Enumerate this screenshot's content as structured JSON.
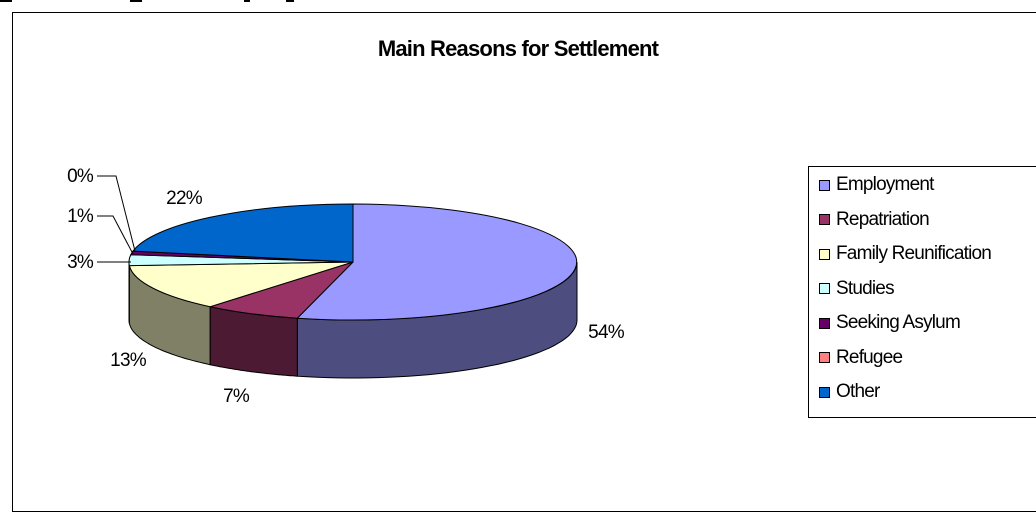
{
  "chart_data": {
    "type": "pie",
    "title": "Main Reasons for Settlement",
    "categories": [
      "Employment",
      "Repatriation",
      "Family Reunification",
      "Studies",
      "Seeking Asylum",
      "Refugee",
      "Other"
    ],
    "values": [
      54,
      7,
      13,
      3,
      1,
      0,
      22
    ],
    "value_labels": [
      "54%",
      "7%",
      "13%",
      "3%",
      "1%",
      "0%",
      "22%"
    ],
    "colors": [
      "#9999ff",
      "#993366",
      "#ffffcc",
      "#ccffff",
      "#660066",
      "#ff8080",
      "#0066cc"
    ],
    "legend_position": "right",
    "style": "3d"
  }
}
